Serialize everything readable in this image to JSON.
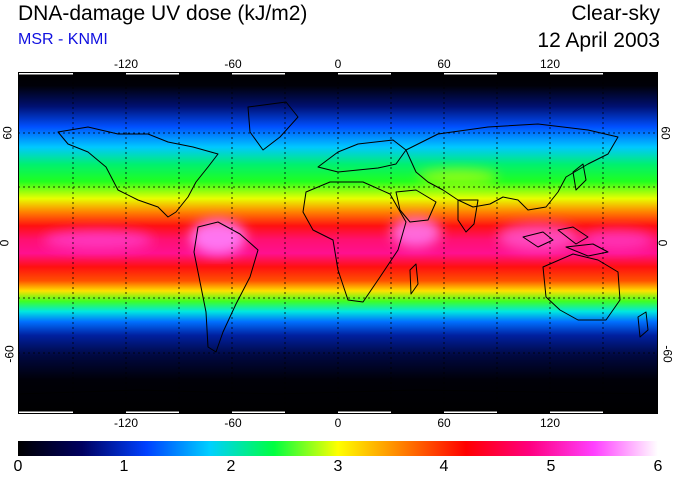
{
  "header": {
    "title": "DNA-damage UV dose (kJ/m2)",
    "source": "MSR - KNMI",
    "condition": "Clear-sky",
    "date": "12 April 2003"
  },
  "map": {
    "projection": "equirectangular",
    "lon_ticks": [
      "-120",
      "-60",
      "0",
      "60",
      "120"
    ],
    "lat_ticks_left": [
      "60",
      "0",
      "-60"
    ],
    "lat_ticks_right": [
      "60",
      "0",
      "-60"
    ],
    "gridlines": "dotted, every 30 degrees",
    "land_outline_color": "#000000"
  },
  "colorbar": {
    "labels": [
      "0",
      "1",
      "2",
      "3",
      "4",
      "5",
      "6"
    ],
    "stops": [
      "#000000",
      "#000060",
      "#0040ff",
      "#00d0ff",
      "#00ff40",
      "#ffff00",
      "#ff8000",
      "#ff0000",
      "#ff0080",
      "#ff40ff",
      "#ffffff"
    ]
  }
}
